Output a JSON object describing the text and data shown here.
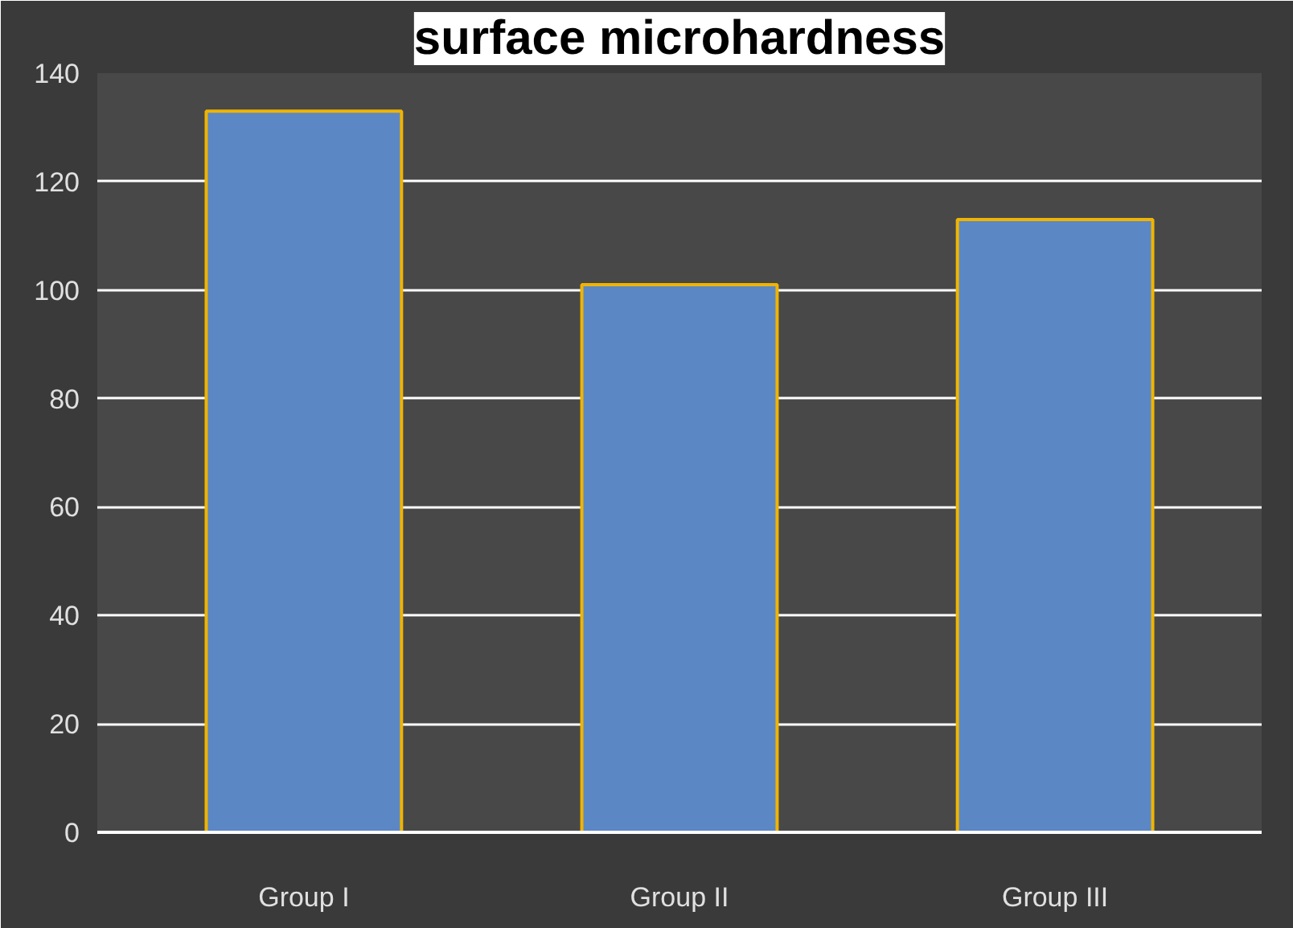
{
  "chart_data": {
    "type": "bar",
    "title": "surface microhardness",
    "categories": [
      "Group I",
      "Group II",
      "Group III"
    ],
    "values": [
      133,
      101,
      113
    ],
    "color": "#5b87c5",
    "ylim": [
      0,
      140
    ],
    "yticks": [
      0,
      20,
      40,
      60,
      80,
      100,
      120,
      140
    ],
    "grid": "y"
  }
}
